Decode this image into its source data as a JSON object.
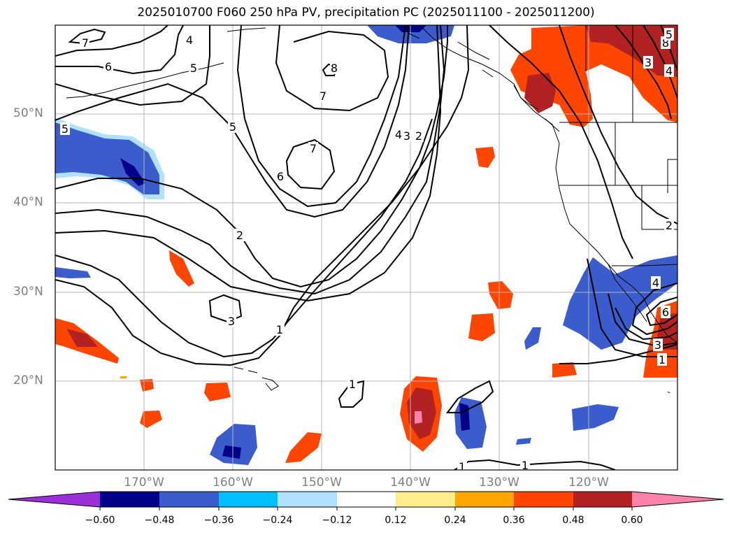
{
  "title": "2025010700 F060 250 hPa PV, precipitation PC (2025011100 - 2025011200)",
  "lat_labels": [
    "50°N",
    "40°N",
    "30°N",
    "20°N"
  ],
  "lon_labels": [
    "170°W",
    "160°W",
    "150°W",
    "140°W",
    "130°W",
    "120°W"
  ],
  "colorbar": {
    "ticks": [
      "−0.60",
      "−0.48",
      "−0.36",
      "−0.24",
      "−0.12",
      "0.12",
      "0.24",
      "0.36",
      "0.48",
      "0.60"
    ],
    "colors": [
      "#9b30d9",
      "#00008b",
      "#3a5ccc",
      "#00bfff",
      "#b0e2ff",
      "#ffffff",
      "#ffec8b",
      "#ffa500",
      "#ff4500",
      "#b22222",
      "#ff82ab"
    ]
  },
  "contour_labels": [
    "7",
    "6",
    "4",
    "5",
    "5",
    "8",
    "7",
    "5",
    "7",
    "6",
    "4",
    "3",
    "2",
    "2",
    "3",
    "1",
    "1",
    "1",
    "1",
    "8",
    "3",
    "4",
    "2",
    "5",
    "4",
    "3",
    "1",
    "6"
  ]
}
